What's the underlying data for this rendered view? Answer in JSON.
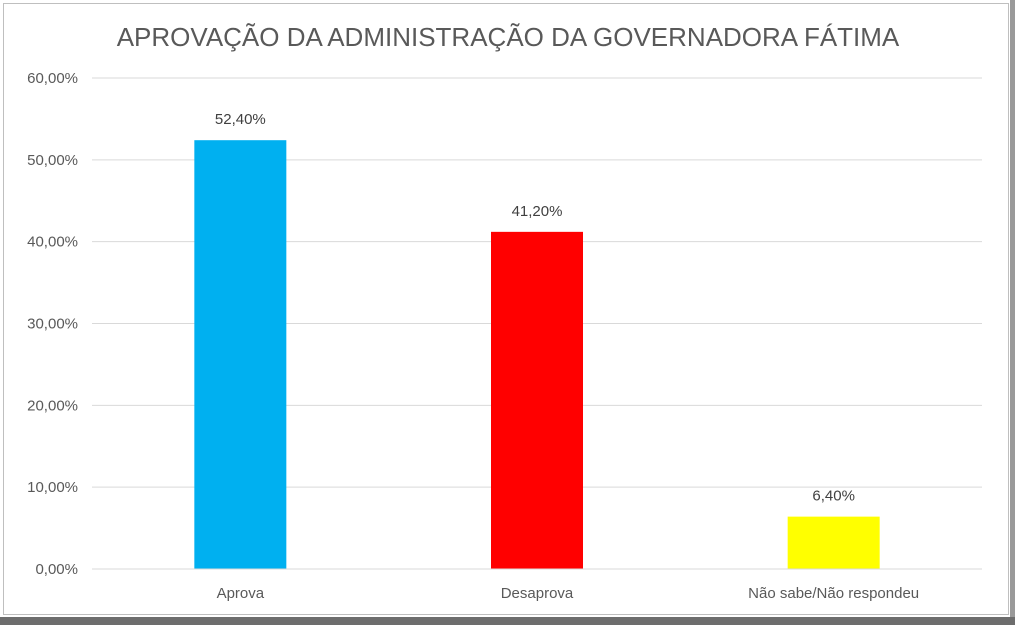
{
  "chart_data": {
    "type": "bar",
    "title": "APROVAÇÃO DA ADMINISTRAÇÃO DA GOVERNADORA FÁTIMA",
    "categories": [
      "Aprova",
      "Desaprova",
      "Não sabe/Não respondeu"
    ],
    "values": [
      52.4,
      41.2,
      6.4
    ],
    "data_labels": [
      "52,40%",
      "41,20%",
      "6,40%"
    ],
    "colors": [
      "#00b0f0",
      "#ff0000",
      "#ffff00"
    ],
    "ylim": [
      0,
      60
    ],
    "yticks": [
      0,
      10,
      20,
      30,
      40,
      50,
      60
    ],
    "ytick_labels": [
      "0,00%",
      "10,00%",
      "20,00%",
      "30,00%",
      "40,00%",
      "50,00%",
      "60,00%"
    ],
    "grid": true,
    "legend": "none",
    "xlabel": "",
    "ylabel": ""
  }
}
